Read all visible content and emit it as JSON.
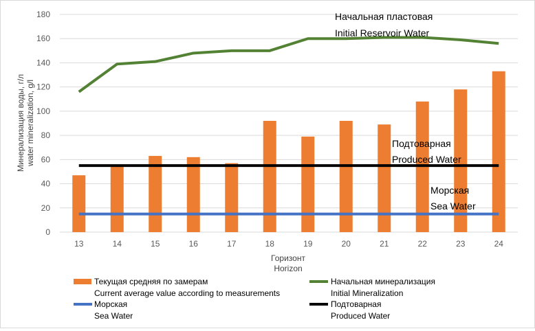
{
  "chart_data": {
    "type": "bar",
    "categories": [
      "13",
      "14",
      "15",
      "16",
      "17",
      "18",
      "19",
      "20",
      "21",
      "22",
      "23",
      "24"
    ],
    "series": [
      {
        "name": "Текущая средняя по замерам",
        "name_en": "Current average value  according to measurements",
        "kind": "bar",
        "color": "#ED7D31",
        "values": [
          47,
          55,
          63,
          62,
          57,
          92,
          79,
          92,
          89,
          108,
          118,
          133
        ]
      },
      {
        "name": "Начальная минерализация",
        "name_en": "Initial Mineralization",
        "kind": "line",
        "color": "#548235",
        "values": [
          116,
          139,
          141,
          148,
          150,
          150,
          160,
          160,
          161,
          161,
          159,
          156
        ]
      },
      {
        "name": "Морская",
        "name_en": "Sea Water",
        "kind": "line",
        "color": "#4472C4",
        "values": [
          15,
          15,
          15,
          15,
          15,
          15,
          15,
          15,
          15,
          15,
          15,
          15
        ]
      },
      {
        "name": "Подтоварная",
        "name_en": "Produced Water",
        "kind": "line",
        "color": "#000000",
        "values": [
          55,
          55,
          55,
          55,
          55,
          55,
          55,
          55,
          55,
          55,
          55,
          55
        ]
      }
    ],
    "ylabel": "Минерализация воды, г/л",
    "ylabel_en": "water mineralization, g/l",
    "xlabel": "Горизонт",
    "xlabel_en": "Horizon",
    "ylim": [
      0,
      180
    ],
    "yticks": [
      0,
      20,
      40,
      60,
      80,
      100,
      120,
      140,
      160,
      180
    ],
    "grid": true,
    "annotations": [
      {
        "id": "initial",
        "line1": "Начальная пластовая",
        "line2": "Initial Reservoir Water"
      },
      {
        "id": "produced",
        "line1": "Подтоварная",
        "line2": "Produced Water"
      },
      {
        "id": "sea",
        "line1": "Морская",
        "line2": "Sea Water"
      }
    ],
    "legend_position": "bottom"
  }
}
